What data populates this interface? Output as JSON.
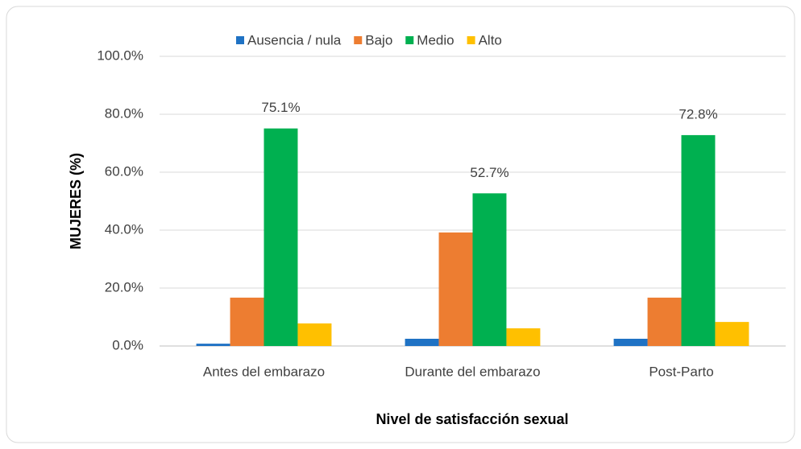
{
  "chart_data": {
    "type": "bar",
    "xlabel": "Nivel de satisfacción sexual",
    "ylabel": "MUJERES (%)",
    "categories": [
      "Antes del embarazo",
      "Durante del embarazo",
      "Post-Parto"
    ],
    "series": [
      {
        "name": "Ausencia / nula",
        "color": "#1f72c4",
        "values": [
          0.8,
          2.5,
          2.5
        ]
      },
      {
        "name": "Bajo",
        "color": "#ed7d31",
        "values": [
          16.7,
          39.2,
          16.7
        ]
      },
      {
        "name": "Medio",
        "color": "#00b050",
        "values": [
          75.1,
          52.7,
          72.8
        ],
        "value_labels": [
          "75.1%",
          "52.7%",
          "72.8%"
        ]
      },
      {
        "name": "Alto",
        "color": "#ffc000",
        "values": [
          7.8,
          6.1,
          8.3
        ]
      }
    ],
    "ylim": [
      0,
      100
    ],
    "yticks": [
      {
        "value": 0,
        "label": "0.0%"
      },
      {
        "value": 20,
        "label": "20.0%"
      },
      {
        "value": 40,
        "label": "40.0%"
      },
      {
        "value": 60,
        "label": "60.0%"
      },
      {
        "value": 80,
        "label": "80.0%"
      },
      {
        "value": 100,
        "label": "100.0%"
      }
    ],
    "grid": true,
    "legend": "top"
  }
}
